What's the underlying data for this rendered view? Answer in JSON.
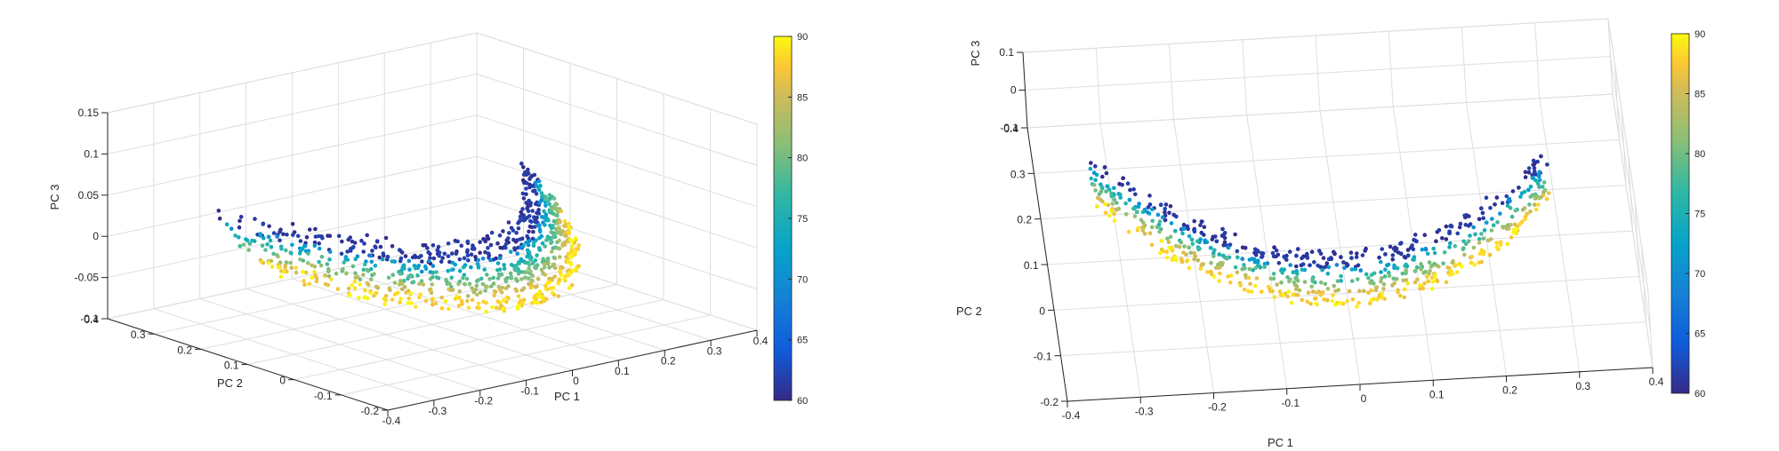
{
  "chart_data": [
    {
      "type": "scatter",
      "view": "3d-oblique",
      "xlabel": "PC 1",
      "ylabel": "PC 2",
      "zlabel": "PC 3",
      "xlim": [
        -0.4,
        0.4
      ],
      "ylim": [
        -0.2,
        0.4
      ],
      "zlim": [
        -0.1,
        0.15
      ],
      "x_ticks": [
        "-0.4",
        "-0.3",
        "-0.2",
        "-0.1",
        "0",
        "0.1",
        "0.2",
        "0.3",
        "0.4"
      ],
      "y_ticks": [
        "-0.2",
        "-0.1",
        "0",
        "0.1",
        "0.2",
        "0.3",
        "0.4"
      ],
      "z_ticks": [
        "-0.1",
        "-0.05",
        "0",
        "0.05",
        "0.1",
        "0.15"
      ],
      "grid": true,
      "marker": "filled circles",
      "colorbar": {
        "range": [
          60,
          90
        ],
        "ticks": [
          "60",
          "65",
          "70",
          "75",
          "80",
          "85",
          "90"
        ],
        "colormap": "parula"
      },
      "point_cloud": "curved U-shaped band of points; low color values (~60) concentrated along the upper/back edge of the band, mid values (~70) in the middle, high values (85-90) along the lower/front edge"
    },
    {
      "type": "scatter",
      "view": "3d-top-down",
      "xlabel": "PC 1",
      "ylabel": "PC 2",
      "zlabel": "PC 3",
      "xlim": [
        -0.4,
        0.4
      ],
      "ylim": [
        -0.2,
        0.4
      ],
      "zlim": [
        -0.1,
        0.1
      ],
      "x_ticks": [
        "-0.4",
        "-0.3",
        "-0.2",
        "-0.1",
        "0",
        "0.1",
        "0.2",
        "0.3",
        "0.4"
      ],
      "y_ticks": [
        "-0.2",
        "-0.1",
        "0",
        "0.1",
        "0.2",
        "0.3",
        "0.4"
      ],
      "z_ticks": [
        "-0.1",
        "0",
        "0.1"
      ],
      "grid": true,
      "marker": "filled circles",
      "colorbar": {
        "range": [
          60,
          90
        ],
        "ticks": [
          "60",
          "65",
          "70",
          "75",
          "80",
          "85",
          "90"
        ],
        "colormap": "parula"
      },
      "point_cloud": "same U-shaped band viewed from above; color gradient runs from ~60 on the inner/upper edge to 85-90 on the outer/lower edge"
    }
  ],
  "colors": {
    "axis": "#262626",
    "grid": "#dedede",
    "colormap": [
      "#352a87",
      "#0f5cdd",
      "#1481d6",
      "#06a4ca",
      "#2eb7a4",
      "#87bf77",
      "#d1bb59",
      "#fec832",
      "#f9fb0e"
    ]
  }
}
